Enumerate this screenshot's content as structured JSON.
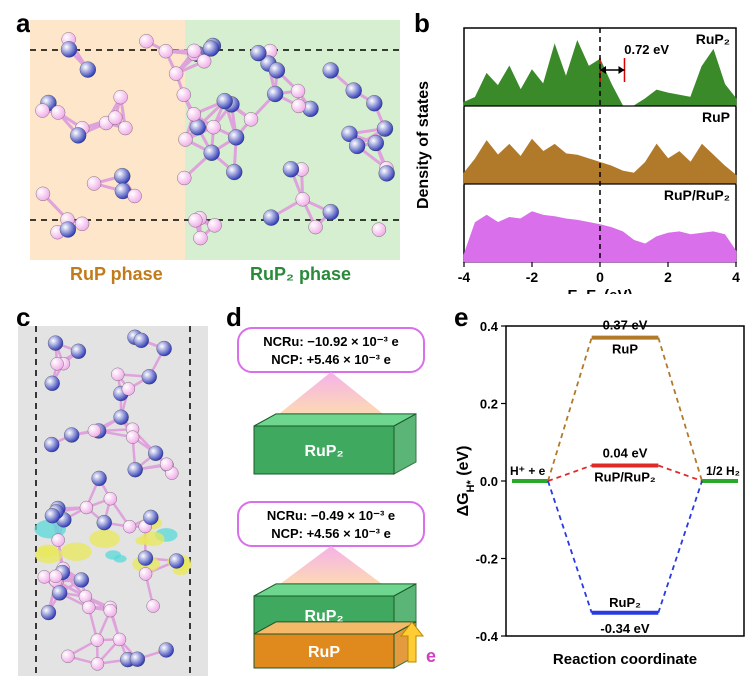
{
  "panel_a": {
    "label": "a",
    "left_region_label": "RuP phase",
    "right_region_label": "RuP₂ phase",
    "left_bg": "#fde6c9",
    "right_bg": "#d6efd0",
    "atom_color_1": "#2733b3",
    "atom_color_2": "#f0a9e8",
    "bond_color": "#dfa2dc"
  },
  "panel_b": {
    "label": "b",
    "ylabel": "Density of states",
    "xlabel": "E−Ef (eV)",
    "xmin": -4,
    "xmax": 4,
    "xtick_step": 2,
    "gap_label": "0.72 eV",
    "series": [
      {
        "name": "RuP₂",
        "color": "#3a8a2a",
        "data": [
          0.05,
          0.12,
          0.45,
          0.28,
          0.55,
          0.22,
          0.5,
          0.3,
          0.85,
          0.4,
          0.9,
          0.55,
          0.65,
          0.3,
          0.0,
          0.0,
          0.1,
          0.22,
          0.18,
          0.15,
          0.12,
          0.55,
          0.78,
          0.3,
          0.1
        ]
      },
      {
        "name": "RuP",
        "color": "#b07a2a",
        "data": [
          0.15,
          0.35,
          0.6,
          0.4,
          0.55,
          0.38,
          0.62,
          0.45,
          0.55,
          0.42,
          0.4,
          0.35,
          0.3,
          0.25,
          0.18,
          0.15,
          0.3,
          0.55,
          0.35,
          0.45,
          0.3,
          0.55,
          0.4,
          0.25,
          0.12
        ]
      },
      {
        "name": "RuP/RuP₂",
        "color": "#d96fea",
        "data": [
          0.1,
          0.55,
          0.65,
          0.55,
          0.62,
          0.6,
          0.7,
          0.65,
          0.63,
          0.6,
          0.58,
          0.55,
          0.52,
          0.48,
          0.42,
          0.3,
          0.25,
          0.35,
          0.4,
          0.42,
          0.38,
          0.4,
          0.42,
          0.38,
          0.15
        ]
      }
    ],
    "fermi_line_color": "#000000"
  },
  "panel_c": {
    "label": "c",
    "bg": "#e3e3e3",
    "atom_color_1": "#2733b3",
    "atom_color_2": "#f0a9e8",
    "iso_pos_color": "#e8e85a",
    "iso_neg_color": "#5ad9d9"
  },
  "panel_d": {
    "label": "d",
    "top_text_1": "NCRu: −10.92 × 10⁻³ e",
    "top_text_2": "NCP: +5.46 × 10⁻³ e",
    "bot_text_1": "NCRu: −0.49 × 10⁻³ e",
    "bot_text_2": "NCP: +4.56 × 10⁻³ e",
    "box_border": "#d96fea",
    "slab_rup2_color": "#3fa95f",
    "slab_rup2_top": "#6fd68f",
    "slab_rup_color": "#e08a1e",
    "slab_rup_top": "#f5b96a",
    "rup2_label": "RuP₂",
    "rup_label": "RuP",
    "electron_label": "e",
    "arrow_color": "#ffcc33",
    "beam_color1": "#ffe29a",
    "beam_color2": "#f4a9e6"
  },
  "panel_e": {
    "label": "e",
    "ylabel": "ΔGH* (eV)",
    "xlabel": "Reaction coordinate",
    "ymin": -0.4,
    "ymax": 0.4,
    "ytick_step": 0.2,
    "left_label": "H⁺ + e",
    "right_label": "1/2 H₂",
    "bars": [
      {
        "name": "RuP",
        "value": 0.37,
        "color": "#b07a2a",
        "text": "0.37 eV"
      },
      {
        "name": "RuP/RuP₂",
        "value": 0.04,
        "color": "#e02a2a",
        "text": "0.04 eV"
      },
      {
        "name": "RuP₂",
        "value": -0.34,
        "color": "#2a3ae0",
        "text": "-0.34 eV"
      }
    ],
    "endpoint_color": "#2aa82a"
  }
}
